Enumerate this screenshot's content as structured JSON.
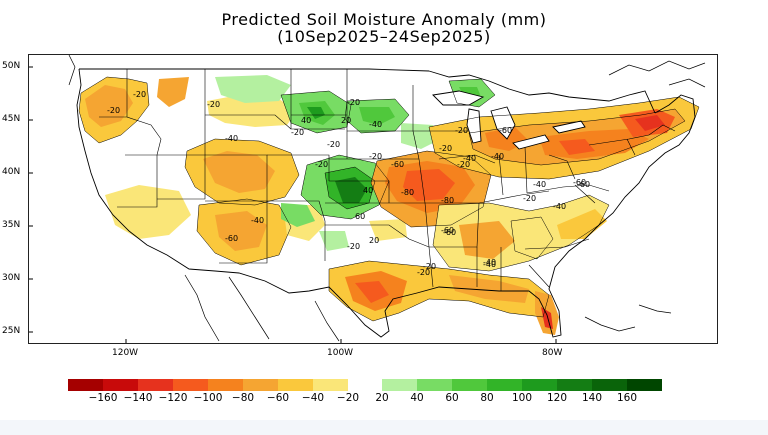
{
  "title_line1": "Predicted Soil Moisture Anomaly (mm)",
  "title_line2": "(10Sep2025–24Sep2025)",
  "lat_labels": [
    "50N",
    "45N",
    "40N",
    "35N",
    "30N",
    "25N"
  ],
  "lon_labels": [
    "120W",
    "100W",
    "80W"
  ],
  "legend": {
    "negative_labels": [
      "−160",
      "−140",
      "−120",
      "−100",
      "−80",
      "−60",
      "−40",
      "−20"
    ],
    "positive_labels": [
      "20",
      "40",
      "60",
      "80",
      "100",
      "120",
      "140",
      "160"
    ],
    "negative_colors": [
      "#a50000",
      "#c80a0a",
      "#e6321e",
      "#f55a1e",
      "#f5821e",
      "#f5a532",
      "#fac83c",
      "#fae678"
    ],
    "positive_colors": [
      "#b4f0a0",
      "#78dc64",
      "#50c83c",
      "#32b428",
      "#1e9b1e",
      "#147d14",
      "#0a640a",
      "#004600"
    ]
  },
  "contour_labels": [
    "-20",
    "-20",
    "-20",
    "-40",
    "-20",
    "40",
    "-20",
    "20",
    "-20",
    "-20",
    "-40",
    "-60",
    "-20",
    "40",
    "-20",
    "-40",
    "-60",
    "-20",
    "-40",
    "-80",
    "-60",
    "-40",
    "-60",
    "-80",
    "60",
    "-20",
    "20",
    "-40",
    "-60",
    "-20",
    "-60",
    "-40",
    "-20",
    "-60",
    "-40",
    "-20",
    "-20",
    "-40"
  ]
}
